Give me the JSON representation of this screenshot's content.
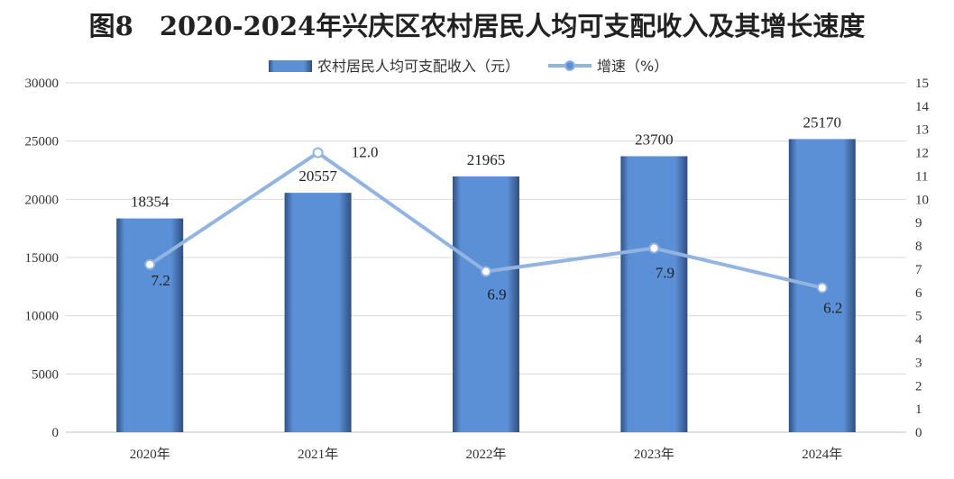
{
  "chart_data": {
    "type": "bar",
    "title": "图8　2020-2024年兴庆区农村居民人均可支配收入及其增长速度",
    "categories": [
      "2020年",
      "2021年",
      "2022年",
      "2023年",
      "2024年"
    ],
    "series": [
      {
        "name": "农村居民人均可支配收入（元）",
        "type": "bar",
        "axis": "left",
        "values": [
          18354,
          20557,
          21965,
          23700,
          25170
        ]
      },
      {
        "name": "增速（%）",
        "type": "line",
        "axis": "right",
        "values": [
          7.2,
          12.0,
          6.9,
          7.9,
          6.2
        ],
        "labels": [
          "7.2",
          "12.0",
          "6.9",
          "7.9",
          "6.2"
        ]
      }
    ],
    "ylim_left": [
      0,
      30000
    ],
    "yticks_left": [
      0,
      5000,
      10000,
      15000,
      20000,
      25000,
      30000
    ],
    "ylim_right": [
      0,
      15
    ],
    "yticks_right": [
      0,
      1,
      2,
      3,
      4,
      5,
      6,
      7,
      8,
      9,
      10,
      11,
      12,
      13,
      14,
      15
    ],
    "grid": true,
    "legend_position": "top-center",
    "colors": {
      "bar": "#5b8fd6",
      "bar_edge": "#2e4e7e",
      "line": "#93b4e0",
      "grid": "#d9d9d9"
    }
  }
}
